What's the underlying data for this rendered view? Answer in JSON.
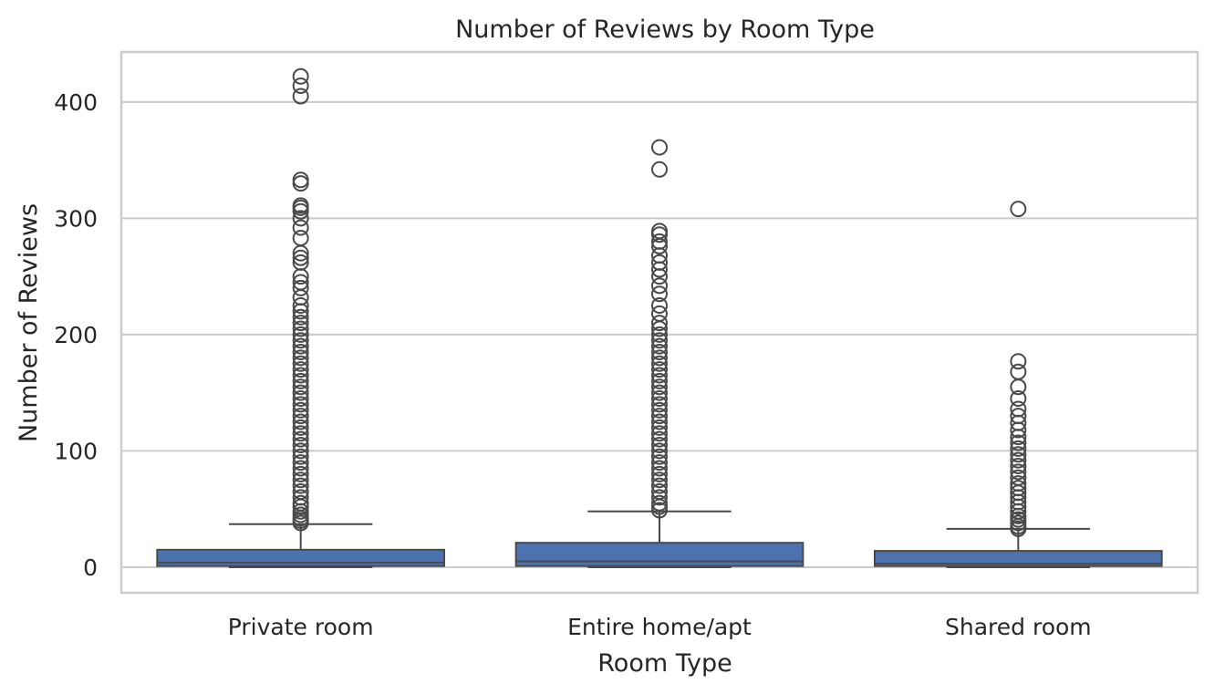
{
  "chart_data": {
    "type": "box",
    "title": "Number of Reviews by Room Type",
    "xlabel": "Room Type",
    "ylabel": "Number of Reviews",
    "ylim": [
      -22,
      443
    ],
    "yticks": [
      0,
      100,
      200,
      300,
      400
    ],
    "grid": true,
    "colors": {
      "box_fill": "#4c72b0",
      "box_edge": "#4a4a4a",
      "grid": "#cccccc",
      "spine": "#cccccc"
    },
    "categories": [
      "Private room",
      "Entire home/apt",
      "Shared room"
    ],
    "boxes": [
      {
        "category": "Private room",
        "whisker_low": 0,
        "q1": 1,
        "median": 4,
        "q3": 15,
        "whisker_high": 37,
        "outliers": [
          38,
          40,
          42,
          45,
          48,
          52,
          55,
          60,
          65,
          70,
          75,
          80,
          85,
          90,
          95,
          100,
          105,
          110,
          115,
          120,
          125,
          130,
          135,
          140,
          145,
          150,
          155,
          160,
          165,
          170,
          175,
          180,
          185,
          190,
          195,
          200,
          205,
          210,
          215,
          220,
          225,
          232,
          240,
          245,
          250,
          262,
          266,
          270,
          283,
          292,
          300,
          306,
          309,
          311,
          330,
          333,
          405,
          414,
          422
        ]
      },
      {
        "category": "Entire home/apt",
        "whisker_low": 0,
        "q1": 1,
        "median": 5,
        "q3": 21,
        "whisker_high": 48,
        "outliers": [
          49,
          52,
          55,
          60,
          65,
          70,
          75,
          80,
          85,
          90,
          95,
          100,
          105,
          110,
          115,
          120,
          125,
          130,
          135,
          140,
          145,
          150,
          155,
          160,
          165,
          170,
          175,
          180,
          185,
          190,
          195,
          200,
          205,
          210,
          218,
          225,
          235,
          242,
          250,
          256,
          262,
          268,
          276,
          280,
          286,
          289,
          342,
          361
        ]
      },
      {
        "category": "Shared room",
        "whisker_low": 0,
        "q1": 1,
        "median": 3,
        "q3": 14,
        "whisker_high": 33,
        "outliers": [
          33,
          35,
          38,
          41,
          44,
          48,
          52,
          56,
          60,
          64,
          68,
          72,
          77,
          82,
          87,
          92,
          97,
          102,
          107,
          112,
          118,
          124,
          130,
          136,
          145,
          155,
          168,
          177,
          308
        ]
      }
    ]
  }
}
